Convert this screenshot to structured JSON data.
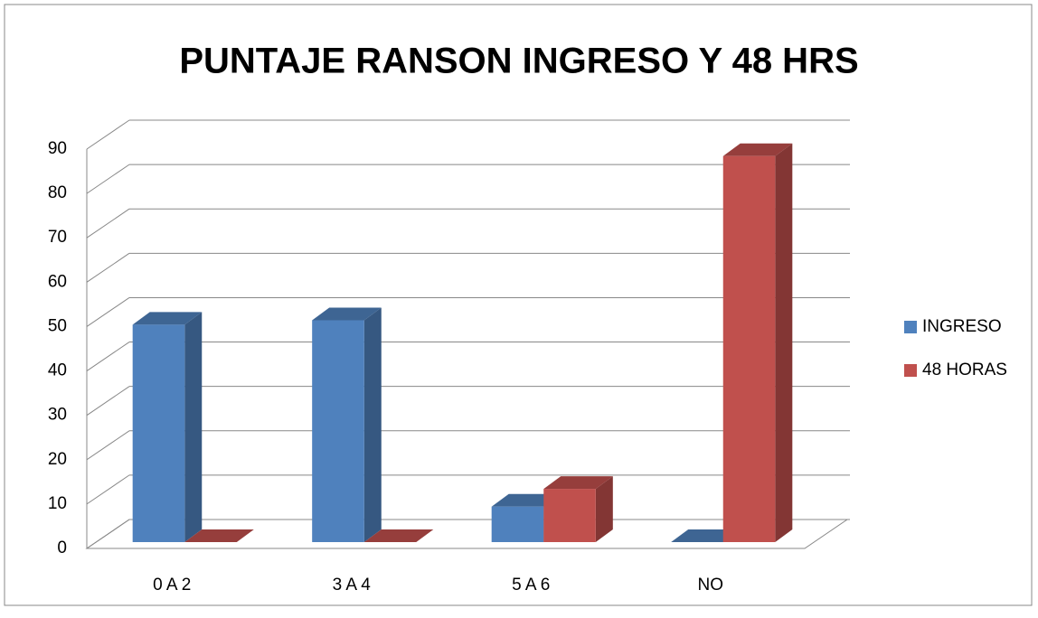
{
  "chart_data": {
    "type": "bar3d",
    "title": "PUNTAJE RANSON INGRESO Y 48 HRS",
    "categories": [
      "0 A 2",
      "3 A 4",
      "5 A 6",
      "NO"
    ],
    "series": [
      {
        "name": "INGRESO",
        "color": "#4f81bd",
        "values": [
          49,
          50,
          8,
          0
        ]
      },
      {
        "name": "48 HORAS",
        "color": "#c0504d",
        "values": [
          0,
          0,
          12,
          87
        ]
      }
    ],
    "ylim": [
      0,
      90
    ],
    "yticks": [
      0,
      10,
      20,
      30,
      40,
      50,
      60,
      70,
      80,
      90
    ],
    "grid": true,
    "legend": "right"
  }
}
